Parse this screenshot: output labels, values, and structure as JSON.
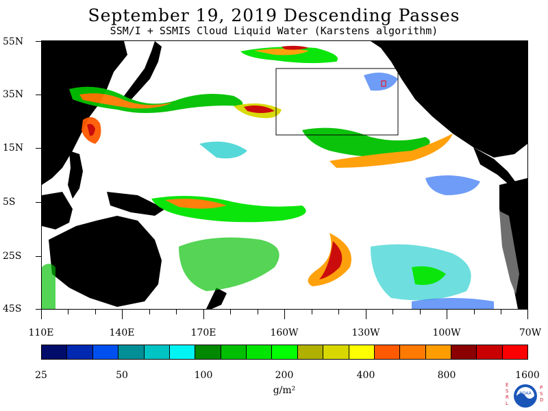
{
  "title": "September 19, 2019  Descending Passes",
  "subtitle": "SSM/I + SSMIS Cloud Liquid Water (Karstens algorithm)",
  "latitude_labels": [
    "55N",
    "35N",
    "15N",
    "5S",
    "25S",
    "45S"
  ],
  "longitude_labels": [
    "110E",
    "140E",
    "170E",
    "160W",
    "130W",
    "100W",
    "70W"
  ],
  "colorbar": {
    "labels": [
      "25",
      "50",
      "100",
      "200",
      "400",
      "800",
      "1600"
    ],
    "units": "g/m²",
    "colors": [
      "#000c6a",
      "#0028b0",
      "#0050f0",
      "#008f96",
      "#00c4c4",
      "#00f4f4",
      "#008800",
      "#00bf00",
      "#00e400",
      "#00ff00",
      "#b0b000",
      "#d8d800",
      "#ffff00",
      "#ff5a00",
      "#ff7a00",
      "#ff9c00",
      "#8b0000",
      "#c80000",
      "#ff0000"
    ]
  },
  "logo": {
    "left_letters": "ESRL",
    "right_letters": "PSD",
    "center": "NOAA"
  }
}
